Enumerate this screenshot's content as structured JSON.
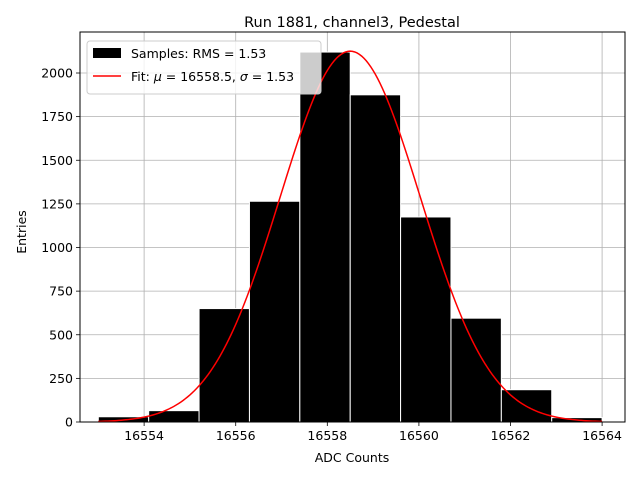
{
  "chart_data": {
    "type": "bar",
    "title": "Run 1881, channel3, Pedestal",
    "xlabel": "ADC Counts",
    "ylabel": "Entries",
    "xlim": [
      16552.6,
      16564.5
    ],
    "ylim": [
      0,
      2235
    ],
    "grid": true,
    "legend_position": "top-left",
    "xticks": [
      16554,
      16556,
      16558,
      16560,
      16562,
      16564
    ],
    "yticks": [
      0,
      250,
      500,
      750,
      1000,
      1250,
      1500,
      1750,
      2000
    ],
    "histogram": {
      "name": "Samples: RMS = 1.53",
      "color": "#000000",
      "edge_color": "#ffffff",
      "bins": [
        {
          "x0": 16553.0,
          "x1": 16554.1,
          "count": 30
        },
        {
          "x0": 16554.1,
          "x1": 16555.2,
          "count": 65
        },
        {
          "x0": 16555.2,
          "x1": 16556.3,
          "count": 650
        },
        {
          "x0": 16556.3,
          "x1": 16557.4,
          "count": 1265
        },
        {
          "x0": 16557.4,
          "x1": 16558.5,
          "count": 2120
        },
        {
          "x0": 16558.5,
          "x1": 16559.6,
          "count": 1875
        },
        {
          "x0": 16559.6,
          "x1": 16560.7,
          "count": 1175
        },
        {
          "x0": 16560.7,
          "x1": 16561.8,
          "count": 595
        },
        {
          "x0": 16561.8,
          "x1": 16562.9,
          "count": 185
        },
        {
          "x0": 16562.9,
          "x1": 16564.0,
          "count": 25
        }
      ]
    },
    "fit": {
      "name": "Fit: μ = 16558.5, σ = 1.53",
      "label_prefix": "Fit: ",
      "label_mu": "μ",
      "label_mu_value": " = 16558.5, ",
      "label_sigma": "σ",
      "label_sigma_value": " = 1.53",
      "color": "#ff0000",
      "mu": 16558.5,
      "sigma": 1.53,
      "amplitude": 2125,
      "x_range": [
        16553.0,
        16564.0
      ]
    }
  }
}
